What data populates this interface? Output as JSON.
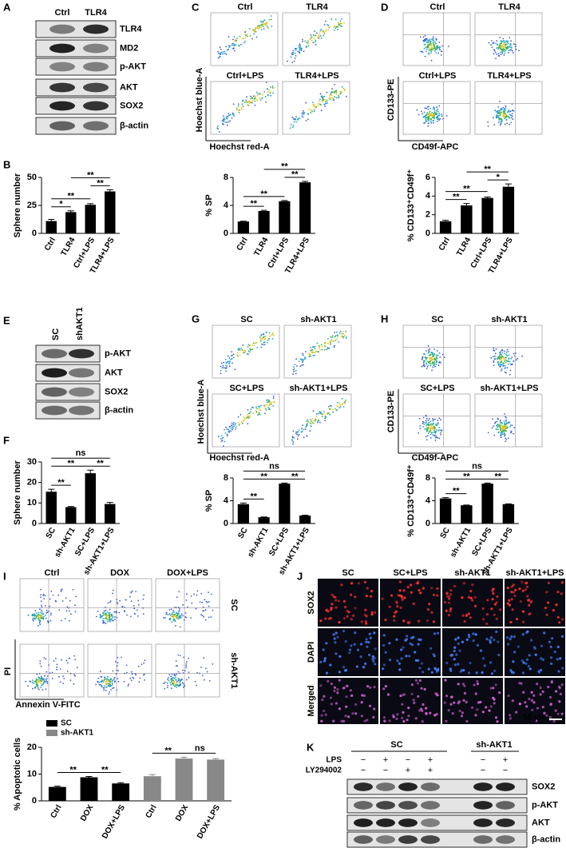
{
  "panel_labels": [
    "A",
    "B",
    "C",
    "D",
    "E",
    "F",
    "G",
    "H",
    "I",
    "J",
    "K"
  ],
  "blot_A": {
    "lanes": [
      "Ctrl",
      "TLR4"
    ],
    "rows": [
      "TLR4",
      "MD2",
      "p-AKT",
      "AKT",
      "SOX2",
      "β-actin"
    ]
  },
  "flow_C": {
    "conditions": [
      "Ctrl",
      "TLR4",
      "Ctrl+LPS",
      "TLR4+LPS"
    ],
    "y_label": "Hoechst blue-A",
    "x_label": "Hoechst red-A"
  },
  "flow_D": {
    "conditions": [
      "Ctrl",
      "TLR4",
      "Ctrl+LPS",
      "TLR4+LPS"
    ],
    "y_label": "CD133-PE",
    "x_label": "CD49f-APC"
  },
  "blot_E": {
    "lanes": [
      "SC",
      "shAKT1"
    ],
    "rows": [
      "p-AKT",
      "AKT",
      "SOX2",
      "β-actin"
    ]
  },
  "flow_G": {
    "conditions": [
      "SC",
      "sh-AKT1",
      "SC+LPS",
      "sh-AKT1+LPS"
    ],
    "y_label": "Hoechst blue-A",
    "x_label": "Hoechst red-A"
  },
  "flow_H": {
    "conditions": [
      "SC",
      "sh-AKT1",
      "SC+LPS",
      "sh-AKT1+LPS"
    ],
    "y_label": "CD133-PE",
    "x_label": "CD49f-APC"
  },
  "flow_I": {
    "columns": [
      "Ctrl",
      "DOX",
      "DOX+LPS"
    ],
    "rows": [
      "SC",
      "sh-AKT1"
    ],
    "y_label": "PI",
    "x_label": "Annexin V-FITC"
  },
  "images_J": {
    "columns": [
      "SC",
      "SC+LPS",
      "sh-AKT1",
      "sh-AKT1+LPS"
    ],
    "rows": [
      "SOX2",
      "DAPI",
      "Merged"
    ],
    "scale_bar": "50 μm"
  },
  "blot_K": {
    "groups": [
      "SC",
      "sh-AKT1"
    ],
    "treatments": [
      {
        "name": "LPS",
        "signs": [
          "−",
          "+",
          "−",
          "+",
          "−",
          "+"
        ]
      },
      {
        "name": "LY294002",
        "signs": [
          "−",
          "−",
          "+",
          "+",
          "−",
          "−"
        ]
      }
    ],
    "rows": [
      "SOX2",
      "p-AKT",
      "AKT",
      "β-actin"
    ]
  },
  "chart_data": [
    {
      "type": "bar",
      "y_label": "Sphere number",
      "categories": [
        "Ctrl",
        "TLR4",
        "Ctrl+LPS",
        "TLR4+LPS"
      ],
      "values": [
        11,
        19,
        25.5,
        37.5
      ],
      "errors": [
        1.5,
        1.2,
        1,
        1.5
      ],
      "color": "#000000",
      "ylim": [
        0,
        50
      ],
      "yticks": [
        0,
        25,
        50
      ],
      "comparisons": [
        {
          "groups": [
            0,
            1
          ],
          "label": "*"
        },
        {
          "groups": [
            2,
            3
          ],
          "label": "**"
        },
        {
          "groups": [
            0,
            2
          ],
          "label": "**"
        },
        {
          "groups": [
            1,
            3
          ],
          "label": "**"
        }
      ]
    },
    {
      "type": "bar",
      "y_label": "% SP",
      "categories": [
        "Ctrl",
        "TLR4",
        "Ctrl+LPS",
        "TLR4+LPS"
      ],
      "values": [
        1.7,
        3.2,
        4.6,
        7.3
      ],
      "errors": [
        0.05,
        0.1,
        0.1,
        0.15
      ],
      "color": "#000000",
      "ylim": [
        0,
        8
      ],
      "yticks": [
        0,
        4,
        8
      ],
      "comparisons": [
        {
          "groups": [
            0,
            1
          ],
          "label": "**"
        },
        {
          "groups": [
            2,
            3
          ],
          "label": "**"
        },
        {
          "groups": [
            0,
            2
          ],
          "label": "**"
        },
        {
          "groups": [
            1,
            3
          ],
          "label": "**"
        }
      ]
    },
    {
      "type": "bar",
      "y_label": "% CD133⁺CD49f⁺",
      "categories": [
        "Ctrl",
        "TLR4",
        "Ctrl+LPS",
        "TLR4+LPS"
      ],
      "values": [
        1.3,
        3.0,
        3.8,
        5.0
      ],
      "errors": [
        0.1,
        0.2,
        0.1,
        0.3
      ],
      "color": "#000000",
      "ylim": [
        0,
        6
      ],
      "yticks": [
        0,
        2,
        4,
        6
      ],
      "comparisons": [
        {
          "groups": [
            0,
            1
          ],
          "label": "**"
        },
        {
          "groups": [
            2,
            3
          ],
          "label": "*"
        },
        {
          "groups": [
            0,
            2
          ],
          "label": "**"
        },
        {
          "groups": [
            1,
            3
          ],
          "label": "**"
        }
      ]
    },
    {
      "type": "bar",
      "y_label": "Sphere number",
      "categories": [
        "SC",
        "sh-AKT1",
        "SC+LPS",
        "sh-AKT1+LPS"
      ],
      "values": [
        15.5,
        8,
        24.5,
        9.5
      ],
      "errors": [
        1.2,
        0.3,
        1.5,
        0.8
      ],
      "color": "#000000",
      "ylim": [
        0,
        30
      ],
      "yticks": [
        0,
        10,
        20,
        30
      ],
      "comparisons": [
        {
          "groups": [
            0,
            1
          ],
          "label": "**"
        },
        {
          "groups": [
            2,
            3
          ],
          "label": "**"
        },
        {
          "groups": [
            0,
            2
          ],
          "label": "**"
        },
        {
          "groups": [
            0,
            3
          ],
          "label": "ns"
        }
      ]
    },
    {
      "type": "bar",
      "y_label": "% SP",
      "categories": [
        "SC",
        "sh-AKT1",
        "SC+LPS",
        "sh-AKT1+LPS"
      ],
      "values": [
        3.4,
        1.1,
        7.0,
        1.4
      ],
      "errors": [
        0.2,
        0.05,
        0.1,
        0.05
      ],
      "color": "#000000",
      "ylim": [
        0,
        8
      ],
      "yticks": [
        0,
        4,
        8
      ],
      "comparisons": [
        {
          "groups": [
            0,
            1
          ],
          "label": "**"
        },
        {
          "groups": [
            2,
            3
          ],
          "label": "**"
        },
        {
          "groups": [
            0,
            2
          ],
          "label": "**"
        },
        {
          "groups": [
            0,
            3
          ],
          "label": "ns"
        }
      ]
    },
    {
      "type": "bar",
      "y_label": "% CD133⁺CD49f⁺",
      "categories": [
        "SC",
        "sh-AKT1",
        "SC+LPS",
        "sh-AKT1+LPS"
      ],
      "values": [
        4.4,
        3.2,
        7.0,
        3.4
      ],
      "errors": [
        0.15,
        0.05,
        0.1,
        0.05
      ],
      "color": "#000000",
      "ylim": [
        0,
        8
      ],
      "yticks": [
        0,
        4,
        8
      ],
      "comparisons": [
        {
          "groups": [
            0,
            1
          ],
          "label": "**"
        },
        {
          "groups": [
            2,
            3
          ],
          "label": "**"
        },
        {
          "groups": [
            0,
            2
          ],
          "label": "**"
        },
        {
          "groups": [
            0,
            3
          ],
          "label": "ns"
        }
      ]
    },
    {
      "type": "bar",
      "y_label": "% Apoptotic cells",
      "categories": [
        "Ctrl",
        "DOX",
        "DOX+LPS",
        "Ctrl",
        "DOX",
        "DOX+LPS"
      ],
      "ylim": [
        0,
        20
      ],
      "yticks": [
        0,
        10,
        20
      ],
      "legend": "top-left",
      "series": [
        {
          "name": "SC",
          "color": "#000000",
          "values": [
            5.2,
            8.8,
            6.5,
            null,
            null,
            null
          ],
          "errors": [
            0.3,
            0.3,
            0.3,
            null,
            null,
            null
          ]
        },
        {
          "name": "sh-AKT1",
          "color": "#888888",
          "values": [
            null,
            null,
            null,
            9.2,
            15.8,
            15.4
          ],
          "errors": [
            null,
            null,
            null,
            0.6,
            0.5,
            0.4
          ]
        }
      ],
      "comparisons": [
        {
          "groups": [
            0,
            1
          ],
          "label": "**"
        },
        {
          "groups": [
            1,
            2
          ],
          "label": "**"
        },
        {
          "groups": [
            3,
            4
          ],
          "label": "**"
        },
        {
          "groups": [
            4,
            5
          ],
          "label": "ns"
        }
      ]
    }
  ]
}
